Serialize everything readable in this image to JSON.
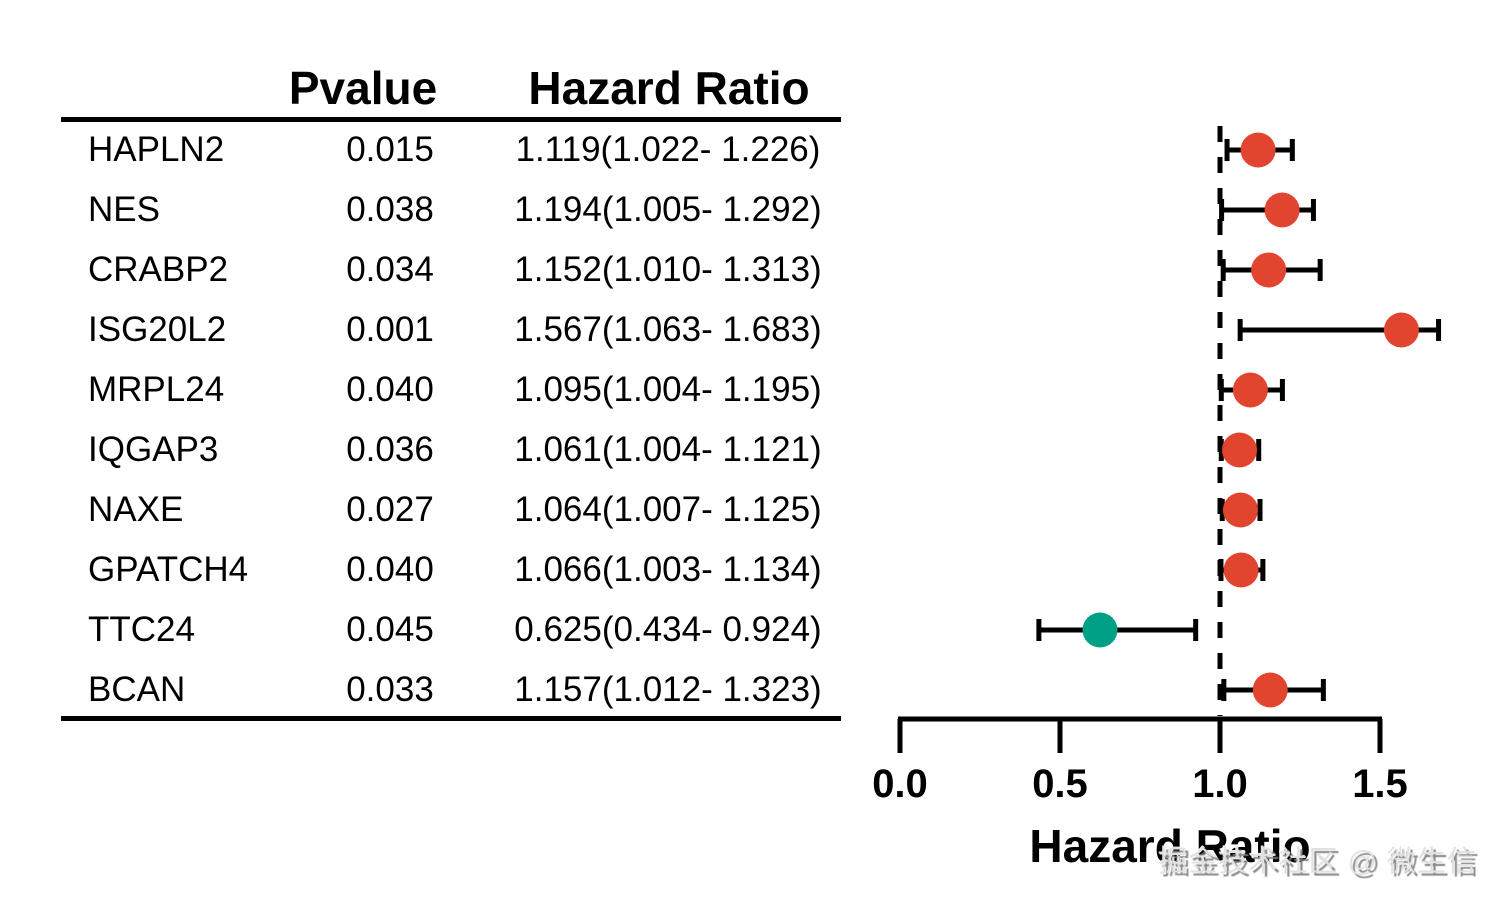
{
  "table": {
    "headers": {
      "pvalue": "Pvalue",
      "hazard_ratio": "Hazard Ratio"
    },
    "rows": [
      {
        "gene": "HAPLN2",
        "pvalue": "0.015",
        "hr_text": "1.119(1.022- 1.226)"
      },
      {
        "gene": "NES",
        "pvalue": "0.038",
        "hr_text": "1.194(1.005- 1.292)"
      },
      {
        "gene": "CRABP2",
        "pvalue": "0.034",
        "hr_text": "1.152(1.010- 1.313)"
      },
      {
        "gene": "ISG20L2",
        "pvalue": "0.001",
        "hr_text": "1.567(1.063- 1.683)"
      },
      {
        "gene": "MRPL24",
        "pvalue": "0.040",
        "hr_text": "1.095(1.004- 1.195)"
      },
      {
        "gene": "IQGAP3",
        "pvalue": "0.036",
        "hr_text": "1.061(1.004- 1.121)"
      },
      {
        "gene": "NAXE",
        "pvalue": "0.027",
        "hr_text": "1.064(1.007- 1.125)"
      },
      {
        "gene": "GPATCH4",
        "pvalue": "0.040",
        "hr_text": "1.066(1.003- 1.134)"
      },
      {
        "gene": "TTC24",
        "pvalue": "0.045",
        "hr_text": "0.625(0.434- 0.924)"
      },
      {
        "gene": "BCAN",
        "pvalue": "0.033",
        "hr_text": "1.157(1.012- 1.323)"
      }
    ]
  },
  "chart_data": {
    "type": "scatter",
    "subtype": "forest-plot",
    "xlabel": "Hazard Ratio",
    "xlim": [
      0,
      1.75
    ],
    "xticks": [
      0,
      0.5,
      1,
      1.5
    ],
    "xtick_labels": [
      "0.0",
      "0.5",
      "1.0",
      "1.5"
    ],
    "reference_line": 1.0,
    "grid": false,
    "legend": false,
    "colors": {
      "risk": "#E2452F",
      "protective": "#00A087"
    },
    "points": [
      {
        "label": "HAPLN2",
        "pvalue": 0.015,
        "hr": 1.119,
        "ci_low": 1.022,
        "ci_high": 1.226,
        "color": "#E2452F"
      },
      {
        "label": "NES",
        "pvalue": 0.038,
        "hr": 1.194,
        "ci_low": 1.005,
        "ci_high": 1.292,
        "color": "#E2452F"
      },
      {
        "label": "CRABP2",
        "pvalue": 0.034,
        "hr": 1.152,
        "ci_low": 1.01,
        "ci_high": 1.313,
        "color": "#E2452F"
      },
      {
        "label": "ISG20L2",
        "pvalue": 0.001,
        "hr": 1.567,
        "ci_low": 1.063,
        "ci_high": 1.683,
        "color": "#E2452F"
      },
      {
        "label": "MRPL24",
        "pvalue": 0.04,
        "hr": 1.095,
        "ci_low": 1.004,
        "ci_high": 1.195,
        "color": "#E2452F"
      },
      {
        "label": "IQGAP3",
        "pvalue": 0.036,
        "hr": 1.061,
        "ci_low": 1.004,
        "ci_high": 1.121,
        "color": "#E2452F"
      },
      {
        "label": "NAXE",
        "pvalue": 0.027,
        "hr": 1.064,
        "ci_low": 1.007,
        "ci_high": 1.125,
        "color": "#E2452F"
      },
      {
        "label": "GPATCH4",
        "pvalue": 0.04,
        "hr": 1.066,
        "ci_low": 1.003,
        "ci_high": 1.134,
        "color": "#E2452F"
      },
      {
        "label": "TTC24",
        "pvalue": 0.045,
        "hr": 0.625,
        "ci_low": 0.434,
        "ci_high": 0.924,
        "color": "#00A087"
      },
      {
        "label": "BCAN",
        "pvalue": 0.033,
        "hr": 1.157,
        "ci_low": 1.012,
        "ci_high": 1.323,
        "color": "#E2452F"
      }
    ]
  },
  "watermark": {
    "text": "掘金技术社区 @ 微生信"
  }
}
